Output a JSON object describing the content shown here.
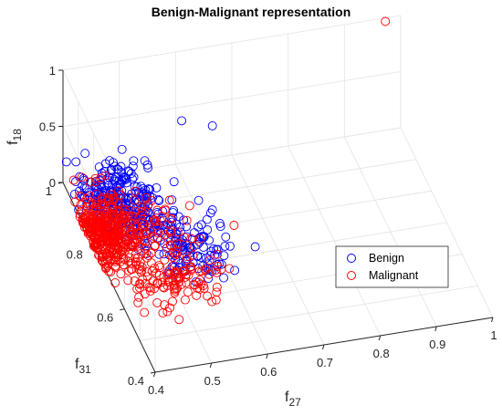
{
  "chart_data": {
    "type": "scatter",
    "title": "Benign-Malignant representation",
    "xlabel": {
      "main": "f",
      "sub": "27"
    },
    "ylabel": {
      "main": "f",
      "sub": "31"
    },
    "zlabel": {
      "main": "f",
      "sub": "18"
    },
    "xlim": [
      0.4,
      1
    ],
    "ylim": [
      0.4,
      1
    ],
    "zlim": [
      0,
      1
    ],
    "xticks": [
      "0.4",
      "0.5",
      "0.6",
      "0.7",
      "0.8",
      "0.9",
      "1"
    ],
    "yticks": [
      "0.4",
      "0.6",
      "0.8",
      "1"
    ],
    "zticks": [
      "0",
      "0.5",
      "1"
    ],
    "grid": true,
    "legend_position": "right",
    "series": [
      {
        "name": "Benign",
        "color": "#0000ff",
        "marker": "circle-open",
        "clusters": [
          {
            "x": 0.47,
            "y": 0.88,
            "z": 0.15,
            "sx": 0.035,
            "sy": 0.05,
            "sz": 0.1,
            "n": 230
          },
          {
            "x": 0.55,
            "y": 0.72,
            "z": 0.08,
            "sx": 0.035,
            "sy": 0.05,
            "sz": 0.05,
            "n": 110
          },
          {
            "x": 0.5,
            "y": 0.82,
            "z": 0.05,
            "sx": 0.04,
            "sy": 0.04,
            "sz": 0.04,
            "n": 70
          }
        ],
        "points": [
          {
            "x": 0.6,
            "y": 0.96,
            "z": 0.5
          },
          {
            "x": 0.66,
            "y": 0.98,
            "z": 0.35
          },
          {
            "x": 0.43,
            "y": 0.97,
            "z": 0.01
          },
          {
            "x": 0.41,
            "y": 0.96,
            "z": 0.0
          },
          {
            "x": 0.42,
            "y": 0.99,
            "z": 0.02
          },
          {
            "x": 0.57,
            "y": 0.9,
            "z": 0.15
          },
          {
            "x": 0.6,
            "y": 0.85,
            "z": 0.1
          },
          {
            "x": 0.62,
            "y": 0.78,
            "z": 0.05
          },
          {
            "x": 0.58,
            "y": 0.7,
            "z": 0.05
          },
          {
            "x": 0.56,
            "y": 0.64,
            "z": 0.03
          }
        ]
      },
      {
        "name": "Malignant",
        "color": "#ff0000",
        "marker": "circle-open",
        "clusters": [
          {
            "x": 0.43,
            "y": 0.82,
            "z": 0.04,
            "sx": 0.025,
            "sy": 0.06,
            "sz": 0.03,
            "n": 380
          },
          {
            "x": 0.5,
            "y": 0.66,
            "z": 0.02,
            "sx": 0.04,
            "sy": 0.04,
            "sz": 0.02,
            "n": 110
          },
          {
            "x": 0.5,
            "y": 0.8,
            "z": 0.07,
            "sx": 0.04,
            "sy": 0.05,
            "sz": 0.05,
            "n": 80
          }
        ],
        "points": [
          {
            "x": 0.97,
            "y": 0.99,
            "z": 1.0
          },
          {
            "x": 0.45,
            "y": 0.97,
            "z": 0.05
          },
          {
            "x": 0.47,
            "y": 0.98,
            "z": 0.06
          },
          {
            "x": 0.43,
            "y": 0.58,
            "z": 0.0
          },
          {
            "x": 0.46,
            "y": 0.57,
            "z": 0.0
          },
          {
            "x": 0.55,
            "y": 0.58,
            "z": 0.0
          },
          {
            "x": 0.57,
            "y": 0.62,
            "z": 0.0
          },
          {
            "x": 0.4,
            "y": 0.8,
            "z": 0.02
          }
        ]
      }
    ]
  }
}
